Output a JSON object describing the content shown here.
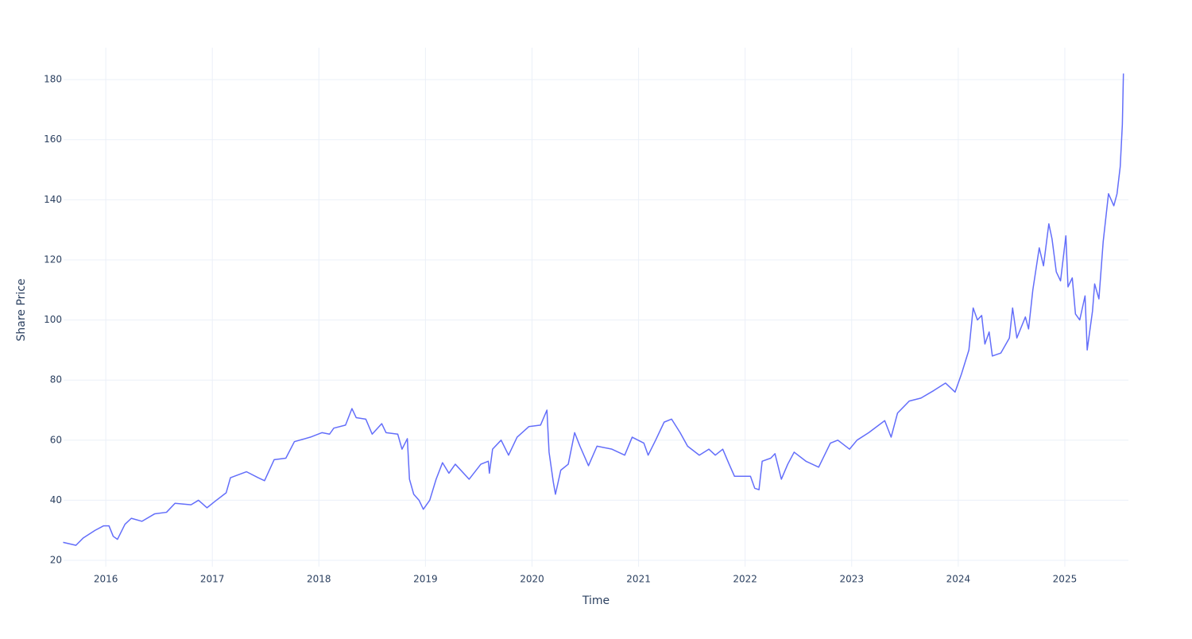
{
  "chart_data": {
    "type": "line",
    "xlabel": "Time",
    "ylabel": "Share Price",
    "color": "#636efa",
    "grid": true,
    "xlim": [
      2015.604,
      2025.597
    ],
    "ylim": [
      17.9,
      190.6
    ],
    "xticks": [
      2016,
      2017,
      2018,
      2019,
      2020,
      2021,
      2022,
      2023,
      2024,
      2025
    ],
    "yticks": [
      20,
      40,
      60,
      80,
      100,
      120,
      140,
      160,
      180
    ],
    "x": [
      2015.6,
      2015.72,
      2015.79,
      2015.9,
      2015.98,
      2016.03,
      2016.07,
      2016.11,
      2016.18,
      2016.24,
      2016.34,
      2016.46,
      2016.57,
      2016.65,
      2016.8,
      2016.87,
      2016.95,
      2017.02,
      2017.13,
      2017.17,
      2017.32,
      2017.43,
      2017.49,
      2017.58,
      2017.69,
      2017.77,
      2017.92,
      2018.03,
      2018.1,
      2018.14,
      2018.25,
      2018.31,
      2018.35,
      2018.44,
      2018.5,
      2018.59,
      2018.63,
      2018.74,
      2018.78,
      2018.83,
      2018.85,
      2018.89,
      2018.94,
      2018.98,
      2019.04,
      2019.1,
      2019.16,
      2019.22,
      2019.28,
      2019.41,
      2019.52,
      2019.59,
      2019.6,
      2019.63,
      2019.71,
      2019.78,
      2019.86,
      2019.97,
      2020.08,
      2020.14,
      2020.16,
      2020.2,
      2020.22,
      2020.27,
      2020.34,
      2020.4,
      2020.45,
      2020.53,
      2020.61,
      2020.75,
      2020.87,
      2020.94,
      2021.05,
      2021.09,
      2021.16,
      2021.24,
      2021.31,
      2021.39,
      2021.46,
      2021.57,
      2021.66,
      2021.72,
      2021.79,
      2021.85,
      2021.9,
      2022.05,
      2022.09,
      2022.13,
      2022.16,
      2022.24,
      2022.28,
      2022.34,
      2022.4,
      2022.46,
      2022.57,
      2022.69,
      2022.8,
      2022.87,
      2022.98,
      2023.05,
      2023.16,
      2023.31,
      2023.37,
      2023.43,
      2023.54,
      2023.65,
      2023.77,
      2023.88,
      2023.97,
      2024.03,
      2024.1,
      2024.14,
      2024.18,
      2024.22,
      2024.25,
      2024.29,
      2024.32,
      2024.4,
      2024.48,
      2024.51,
      2024.55,
      2024.63,
      2024.66,
      2024.7,
      2024.76,
      2024.8,
      2024.85,
      2024.88,
      2024.92,
      2024.96,
      2025.01,
      2025.03,
      2025.07,
      2025.1,
      2025.14,
      2025.19,
      2025.21,
      2025.26,
      2025.28,
      2025.32,
      2025.36,
      2025.41,
      2025.46,
      2025.49,
      2025.52,
      2025.54,
      2025.55
    ],
    "values": [
      26,
      25,
      27.5,
      30,
      31.5,
      31.5,
      28,
      27,
      32,
      34,
      33,
      35.5,
      36,
      39,
      38.5,
      40,
      37.5,
      39.5,
      42.5,
      47.5,
      49.5,
      47.5,
      46.5,
      53.5,
      54,
      59.5,
      61,
      62.5,
      62,
      64,
      65,
      70.5,
      67.5,
      67,
      62,
      65.5,
      62.5,
      62,
      57,
      60.5,
      47,
      42,
      40,
      37,
      40,
      47,
      52.5,
      49,
      52,
      47,
      52,
      53,
      49,
      57,
      60,
      55,
      61,
      64.5,
      65,
      70,
      56,
      46,
      42,
      50,
      52,
      62.5,
      58,
      51.5,
      58,
      57,
      55,
      61,
      59,
      55,
      60,
      66,
      67,
      62.5,
      58,
      55,
      57,
      55,
      57,
      52,
      48,
      48,
      44,
      43.5,
      53,
      54,
      55.5,
      47,
      52,
      56,
      53,
      51,
      59,
      60,
      57,
      60,
      62.5,
      66.5,
      61,
      69,
      73,
      74,
      76.5,
      79,
      76,
      82,
      90,
      104,
      100,
      101.5,
      92,
      96,
      88,
      89,
      94,
      104,
      94,
      101,
      97,
      110,
      124,
      118,
      132,
      127,
      116,
      113,
      128,
      111,
      114,
      102,
      100,
      108,
      90,
      103,
      112,
      107,
      126,
      142,
      138,
      142,
      151,
      165,
      182
    ]
  }
}
